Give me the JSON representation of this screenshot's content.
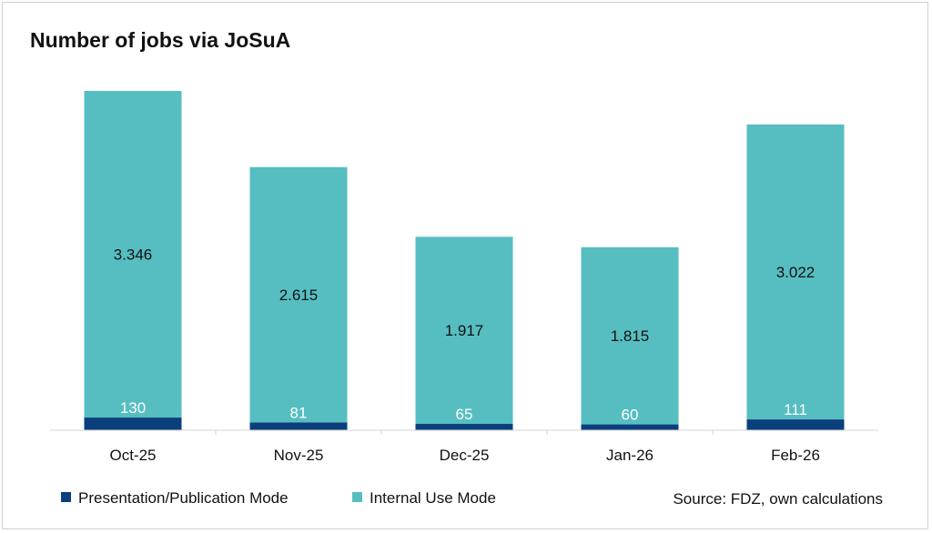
{
  "chart_data": {
    "type": "bar",
    "stacked": true,
    "title": "Number of jobs via JoSuA",
    "categories": [
      "Oct-25",
      "Nov-25",
      "Dec-25",
      "Jan-26",
      "Feb-26"
    ],
    "series": [
      {
        "name": "Presentation/Publication Mode",
        "color": "#0b3f7c",
        "label_color": "#ffffff",
        "values": [
          130,
          81,
          65,
          60,
          111
        ]
      },
      {
        "name": "Internal Use Mode",
        "color": "#56bec1",
        "label_color": "#111111",
        "values": [
          3346,
          2615,
          1917,
          1815,
          3022
        ]
      }
    ],
    "data_labels": [
      [
        "130",
        "81",
        "65",
        "60",
        "111"
      ],
      [
        "3.346",
        "2.615",
        "1.917",
        "1.815",
        "3.022"
      ]
    ],
    "ylim": [
      0,
      3476
    ],
    "grid": false,
    "y_axis_visible": false,
    "legend_position": "bottom-left",
    "source": "Source: FDZ, own calculations"
  }
}
